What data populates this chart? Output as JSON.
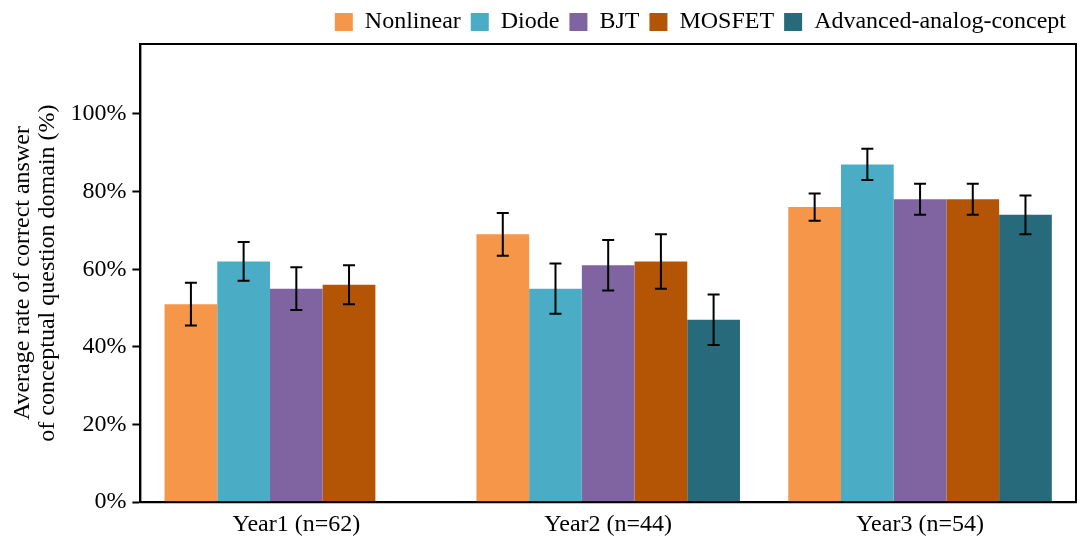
{
  "chart_data": {
    "type": "bar",
    "ylabel": "Average rate of correct answer of conceptual question domain (%)",
    "categories": [
      "Year1 (n=62)",
      "Year2 (n=44)",
      "Year3 (n=54)"
    ],
    "series": [
      {
        "name": "Nonlinear",
        "color": "#f59649",
        "values": [
          51,
          69,
          76
        ],
        "errors": [
          5.5,
          5.5,
          3.5
        ]
      },
      {
        "name": "Diode",
        "color": "#4bacc6",
        "values": [
          62,
          55,
          87
        ],
        "errors": [
          5,
          6.5,
          4
        ]
      },
      {
        "name": "BJT",
        "color": "#8064a2",
        "values": [
          55,
          61,
          78
        ],
        "errors": [
          5.5,
          6.5,
          4
        ]
      },
      {
        "name": "MOSFET",
        "color": "#b45506",
        "values": [
          56,
          62,
          78
        ],
        "errors": [
          5,
          7,
          4
        ]
      },
      {
        "name": "Advanced-analog-concept",
        "color": "#276a7c",
        "values": [
          null,
          47,
          74
        ],
        "errors": [
          null,
          6.5,
          5
        ]
      }
    ],
    "ylim": [
      0,
      118
    ],
    "yticks": [
      {
        "value": 0,
        "label": "0%"
      },
      {
        "value": 20,
        "label": "20%"
      },
      {
        "value": 40,
        "label": "40%"
      },
      {
        "value": 60,
        "label": "60%"
      },
      {
        "value": 80,
        "label": "80%"
      },
      {
        "value": 100,
        "label": "100%"
      }
    ],
    "grid": false,
    "legend": "top right"
  }
}
